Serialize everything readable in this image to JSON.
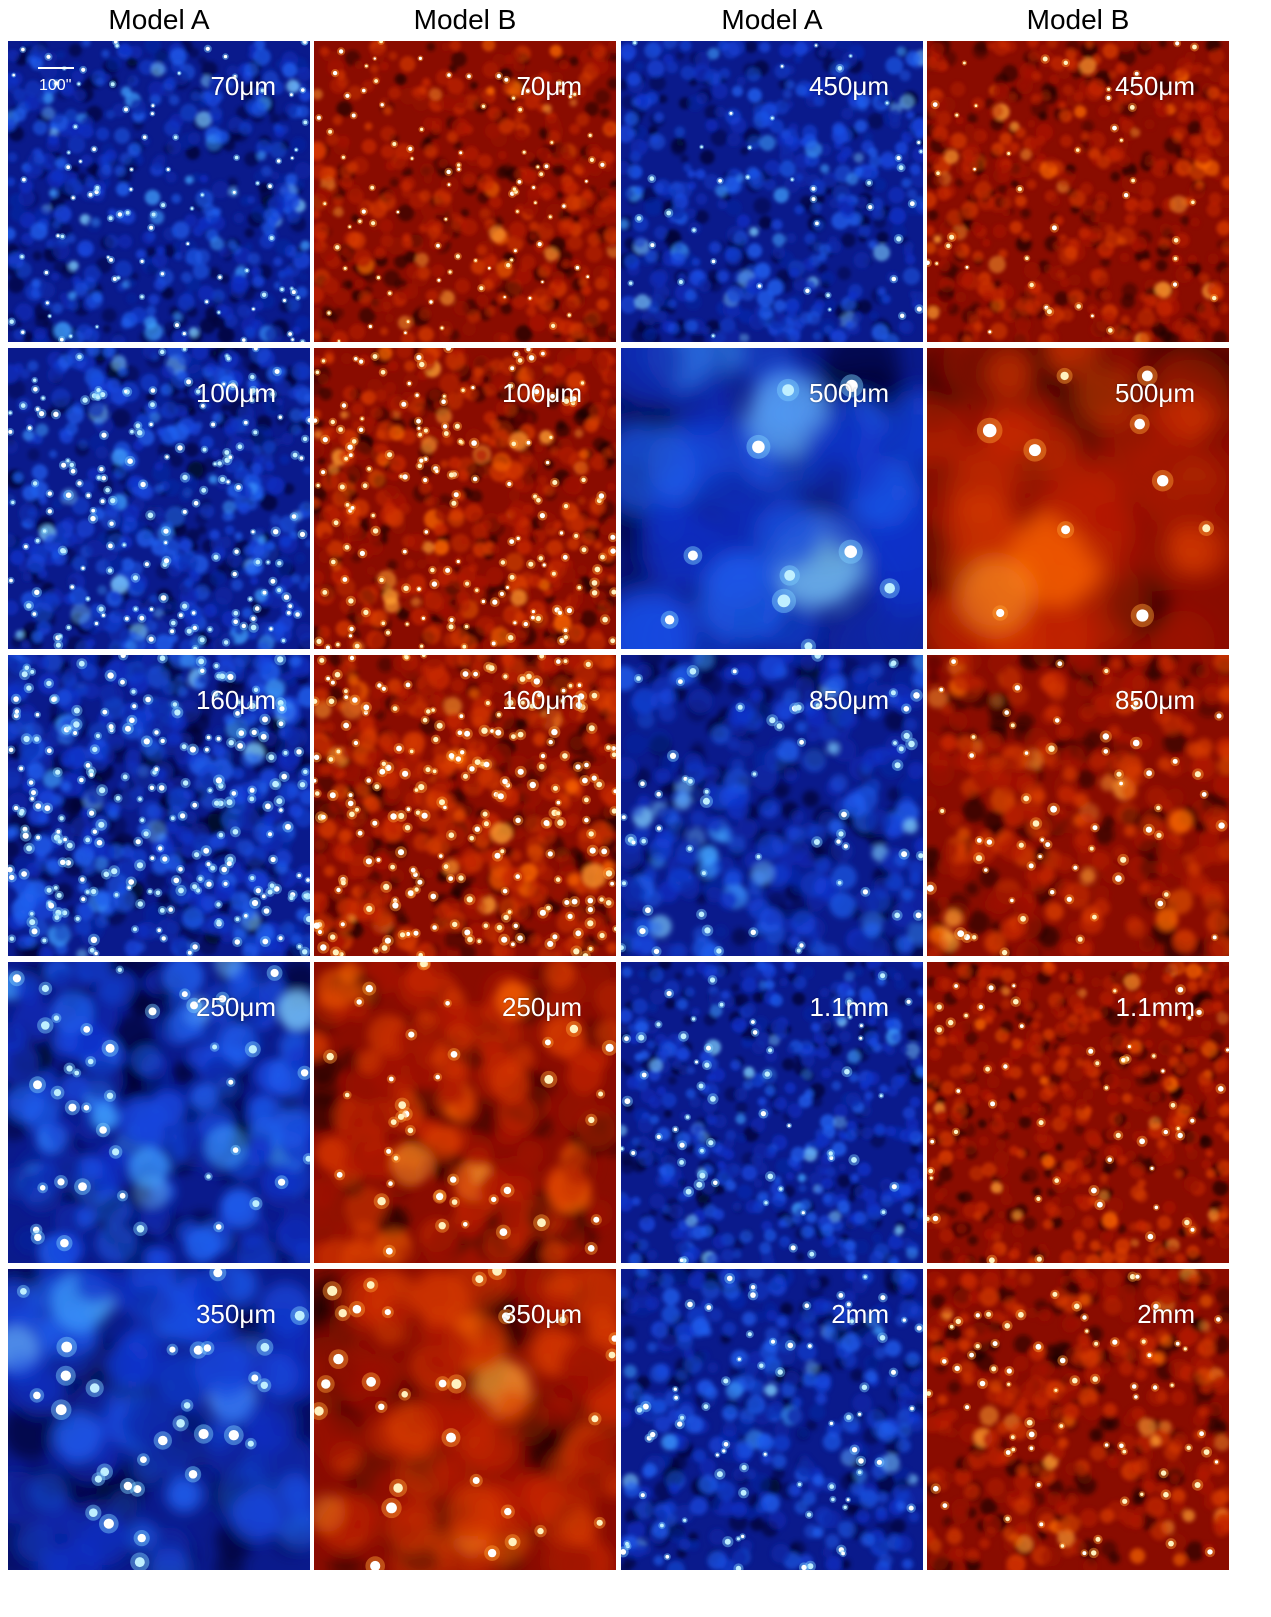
{
  "columns": [
    {
      "title": "Model A",
      "palette": "blue"
    },
    {
      "title": "Model B",
      "palette": "red"
    },
    {
      "title": "Model A",
      "palette": "blue"
    },
    {
      "title": "Model B",
      "palette": "red"
    }
  ],
  "scale_bar_label": "100\"",
  "bands": {
    "left": [
      "70μm",
      "100μm",
      "160μm",
      "250μm",
      "350μm"
    ],
    "right": [
      "450μm",
      "500μm",
      "850μm",
      "1.1mm",
      "2mm"
    ]
  },
  "colors": {
    "blue_background": "#0a1a8c",
    "blue_highlight": "#bfefff",
    "red_background": "#8a0c00",
    "red_highlight": "#fff2c0",
    "separator": "#ffffff"
  }
}
